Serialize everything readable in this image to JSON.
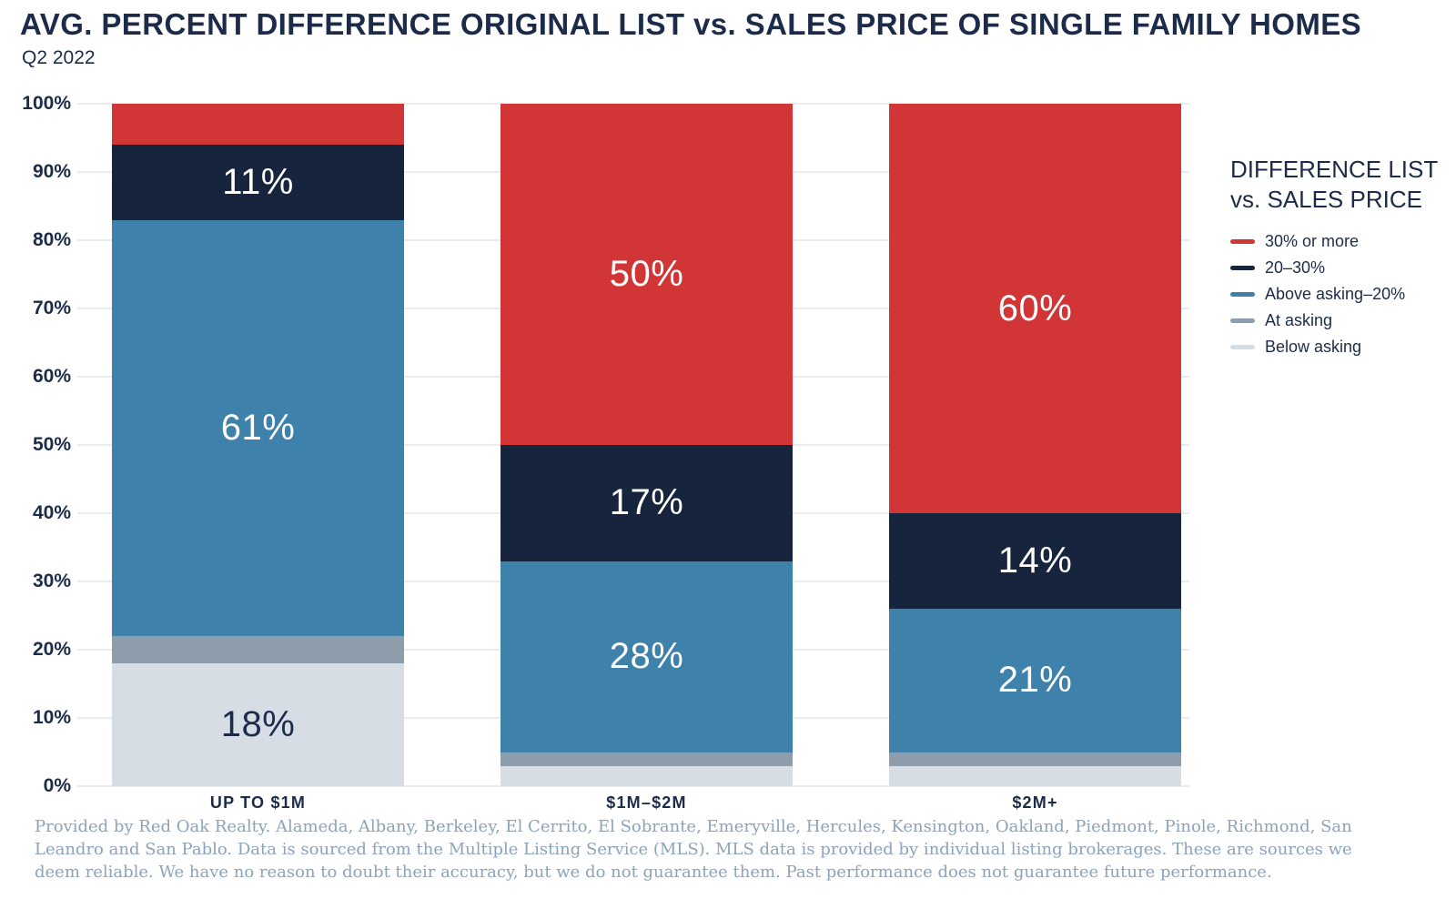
{
  "header": {
    "title": "AVG. PERCENT DIFFERENCE ORIGINAL LIST vs. SALES PRICE OF SINGLE FAMILY HOMES",
    "subtitle": "Q2 2022"
  },
  "legend": {
    "title_line1": "DIFFERENCE LIST",
    "title_line2": "vs. SALES PRICE"
  },
  "footnote": "Provided by Red Oak Realty. Alameda, Albany, Berkeley, El Cerrito, El Sobrante, Emeryville, Hercules, Kensington, Oakland, Piedmont, Pinole, Richmond, San Leandro and San Pablo. Data is sourced from the Multiple Listing Service (MLS). MLS data is provided by individual listing brokerages. These are sources we deem reliable. We have no reason to doubt their accuracy, but we do not guarantee them. Past performance does not guarantee future performance.",
  "colors": {
    "title_navy": "#1c2b49",
    "grid": "#e9edf2",
    "footnote_text": "#8ba3bc"
  },
  "chart_data": {
    "type": "bar",
    "stacked": true,
    "title": "AVG. PERCENT DIFFERENCE ORIGINAL LIST vs. SALES PRICE OF SINGLE FAMILY HOMES",
    "subtitle": "Q2 2022",
    "categories": [
      "UP TO $1M",
      "$1M–$2M",
      "$2M+"
    ],
    "series": [
      {
        "name": "Below asking",
        "color": "#d7dde5",
        "label_color": "#1c2b49",
        "values": [
          18,
          3,
          3
        ]
      },
      {
        "name": "At asking",
        "color": "#8d9dac",
        "label_color": "#ffffff",
        "values": [
          4,
          2,
          2
        ]
      },
      {
        "name": "Above asking–20%",
        "color": "#3e81aa",
        "label_color": "#ffffff",
        "values": [
          61,
          28,
          21
        ]
      },
      {
        "name": "20–30%",
        "color": "#16253d",
        "label_color": "#ffffff",
        "values": [
          11,
          17,
          14
        ]
      },
      {
        "name": "30% or more",
        "color": "#d23535",
        "label_color": "#ffffff",
        "values": [
          6,
          50,
          60
        ]
      }
    ],
    "y_tick_labels": [
      "0%",
      "10%",
      "20%",
      "30%",
      "40%",
      "50%",
      "60%",
      "70%",
      "80%",
      "90%",
      "100%"
    ],
    "ylim": [
      0,
      100
    ],
    "grid": "horizontal",
    "legend_position": "right",
    "legend_order": "reversed",
    "min_label_pct": 10,
    "value_suffix": "%"
  }
}
